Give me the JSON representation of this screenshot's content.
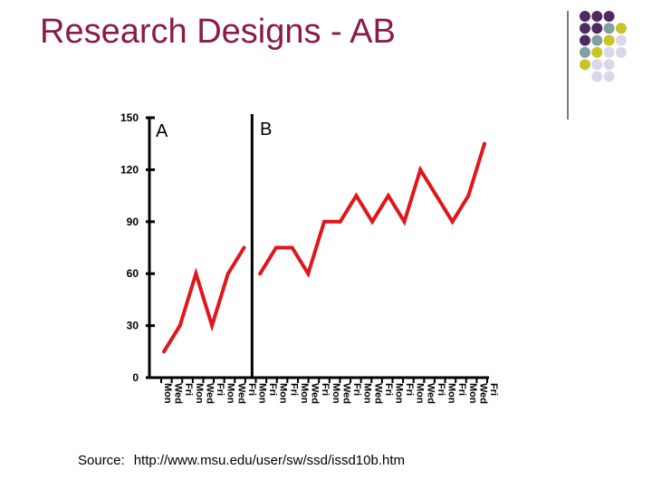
{
  "slide": {
    "title": "Research Designs - AB",
    "source_label": "Source:",
    "source_url": "http://www.msu.edu/user/sw/ssd/issd10b.htm"
  },
  "colors": {
    "title": "#8a1a4b",
    "line": "#e0161b",
    "axis": "#000000",
    "dot_purple": "#4e2a63",
    "dot_teal": "#7f9fa0",
    "dot_olive": "#c8c42a",
    "dot_lavender": "#d9d7ea"
  },
  "decoration": {
    "dot_grid": [
      [
        "purple",
        "purple",
        "purple",
        null
      ],
      [
        "purple",
        "purple",
        "teal",
        "olive"
      ],
      [
        "purple",
        "teal",
        "olive",
        "lavender"
      ],
      [
        "teal",
        "olive",
        "lavender",
        "lavender"
      ],
      [
        "olive",
        "lavender",
        "lavender",
        null
      ],
      [
        null,
        "lavender",
        "lavender",
        null
      ]
    ]
  },
  "chart_data": {
    "type": "line",
    "ylim": [
      0,
      150
    ],
    "yticks": [
      0,
      30,
      60,
      90,
      120,
      150
    ],
    "phases": [
      {
        "label": "A",
        "x": [
          1,
          2,
          3,
          4,
          5,
          6
        ]
      },
      {
        "label": "B",
        "x": [
          7,
          8,
          9,
          10,
          11,
          12,
          13,
          14,
          15,
          16,
          17,
          18,
          19,
          20,
          21
        ]
      }
    ],
    "series": [
      {
        "values": [
          15,
          30,
          60,
          30,
          60,
          75
        ]
      },
      {
        "values": [
          60,
          75,
          75,
          60,
          90,
          90,
          105,
          90,
          105,
          90,
          120,
          105,
          90,
          105,
          135
        ]
      }
    ],
    "xtick_labels": [
      "Mon",
      "Wed",
      "Fri",
      "Mon",
      "Wed",
      "Fri",
      "Mon",
      "Wed",
      "Fri",
      "Mon",
      "Fri",
      "Mon",
      "Fri",
      "Mon",
      "Wed",
      "Fri",
      "Mon",
      "Wed",
      "Fri",
      "Mon",
      "Wed",
      "Fri",
      "Mon",
      "Fri",
      "Mon",
      "Wed",
      "Fri",
      "Mon",
      "Fri",
      "Mon",
      "Wed",
      "Fri"
    ]
  }
}
